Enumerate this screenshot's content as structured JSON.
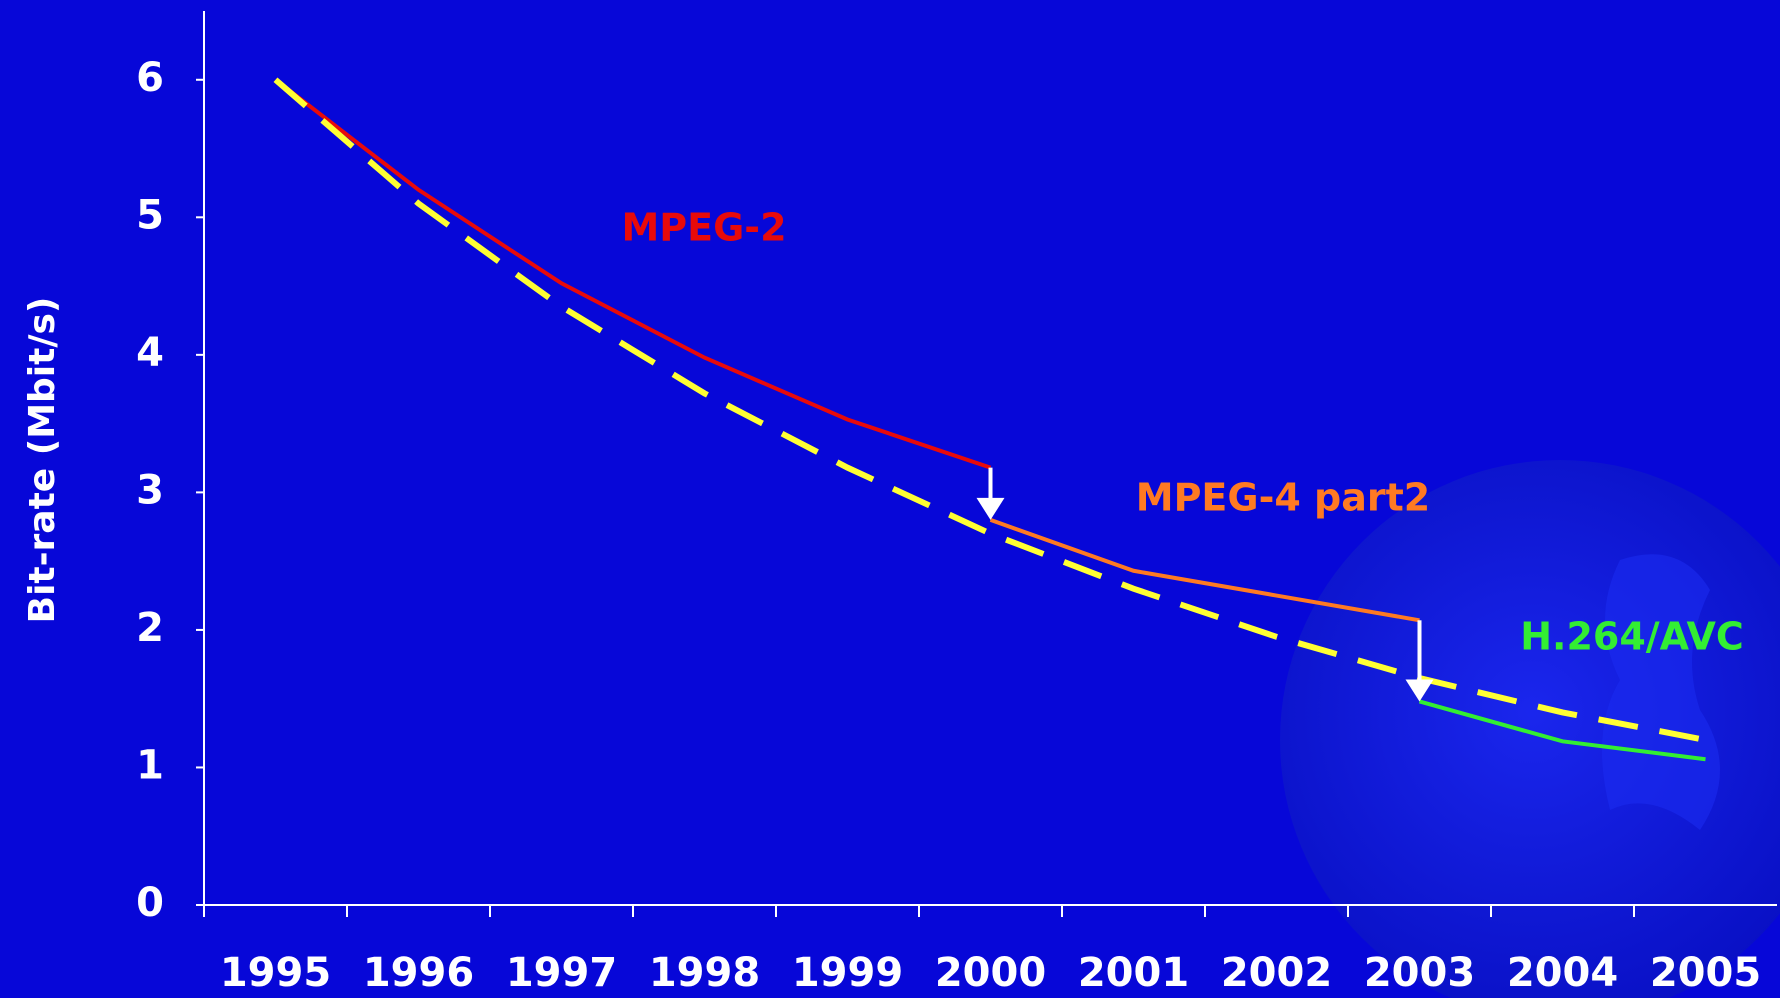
{
  "chart_data": {
    "type": "line",
    "ylabel": "Bit-rate (Mbit/s)",
    "categories": [
      "1995",
      "1996",
      "1997",
      "1998",
      "1999",
      "2000",
      "2001",
      "2002",
      "2003",
      "2004",
      "2005"
    ],
    "ylim": [
      0,
      6.5
    ],
    "yticks": [
      0,
      1,
      2,
      3,
      4,
      5,
      6
    ],
    "series": [
      {
        "name": "MPEG-2",
        "color": "#e80a0a",
        "values": [
          6.0,
          5.2,
          4.52,
          3.98,
          3.53,
          3.18,
          null,
          null,
          null,
          null,
          null
        ]
      },
      {
        "name": "MPEG-4 part2",
        "color": "#ff7a22",
        "values": [
          null,
          null,
          null,
          null,
          null,
          2.8,
          2.43,
          2.25,
          2.07,
          null,
          null
        ]
      },
      {
        "name": "H.264/AVC",
        "color": "#33ee33",
        "values": [
          null,
          null,
          null,
          null,
          null,
          null,
          null,
          null,
          1.48,
          1.19,
          1.06
        ]
      },
      {
        "color": "#ffff33",
        "dashed": true,
        "values": [
          6.0,
          5.1,
          4.35,
          3.72,
          3.18,
          2.7,
          2.3,
          1.95,
          1.65,
          1.4,
          1.2
        ]
      }
    ]
  }
}
